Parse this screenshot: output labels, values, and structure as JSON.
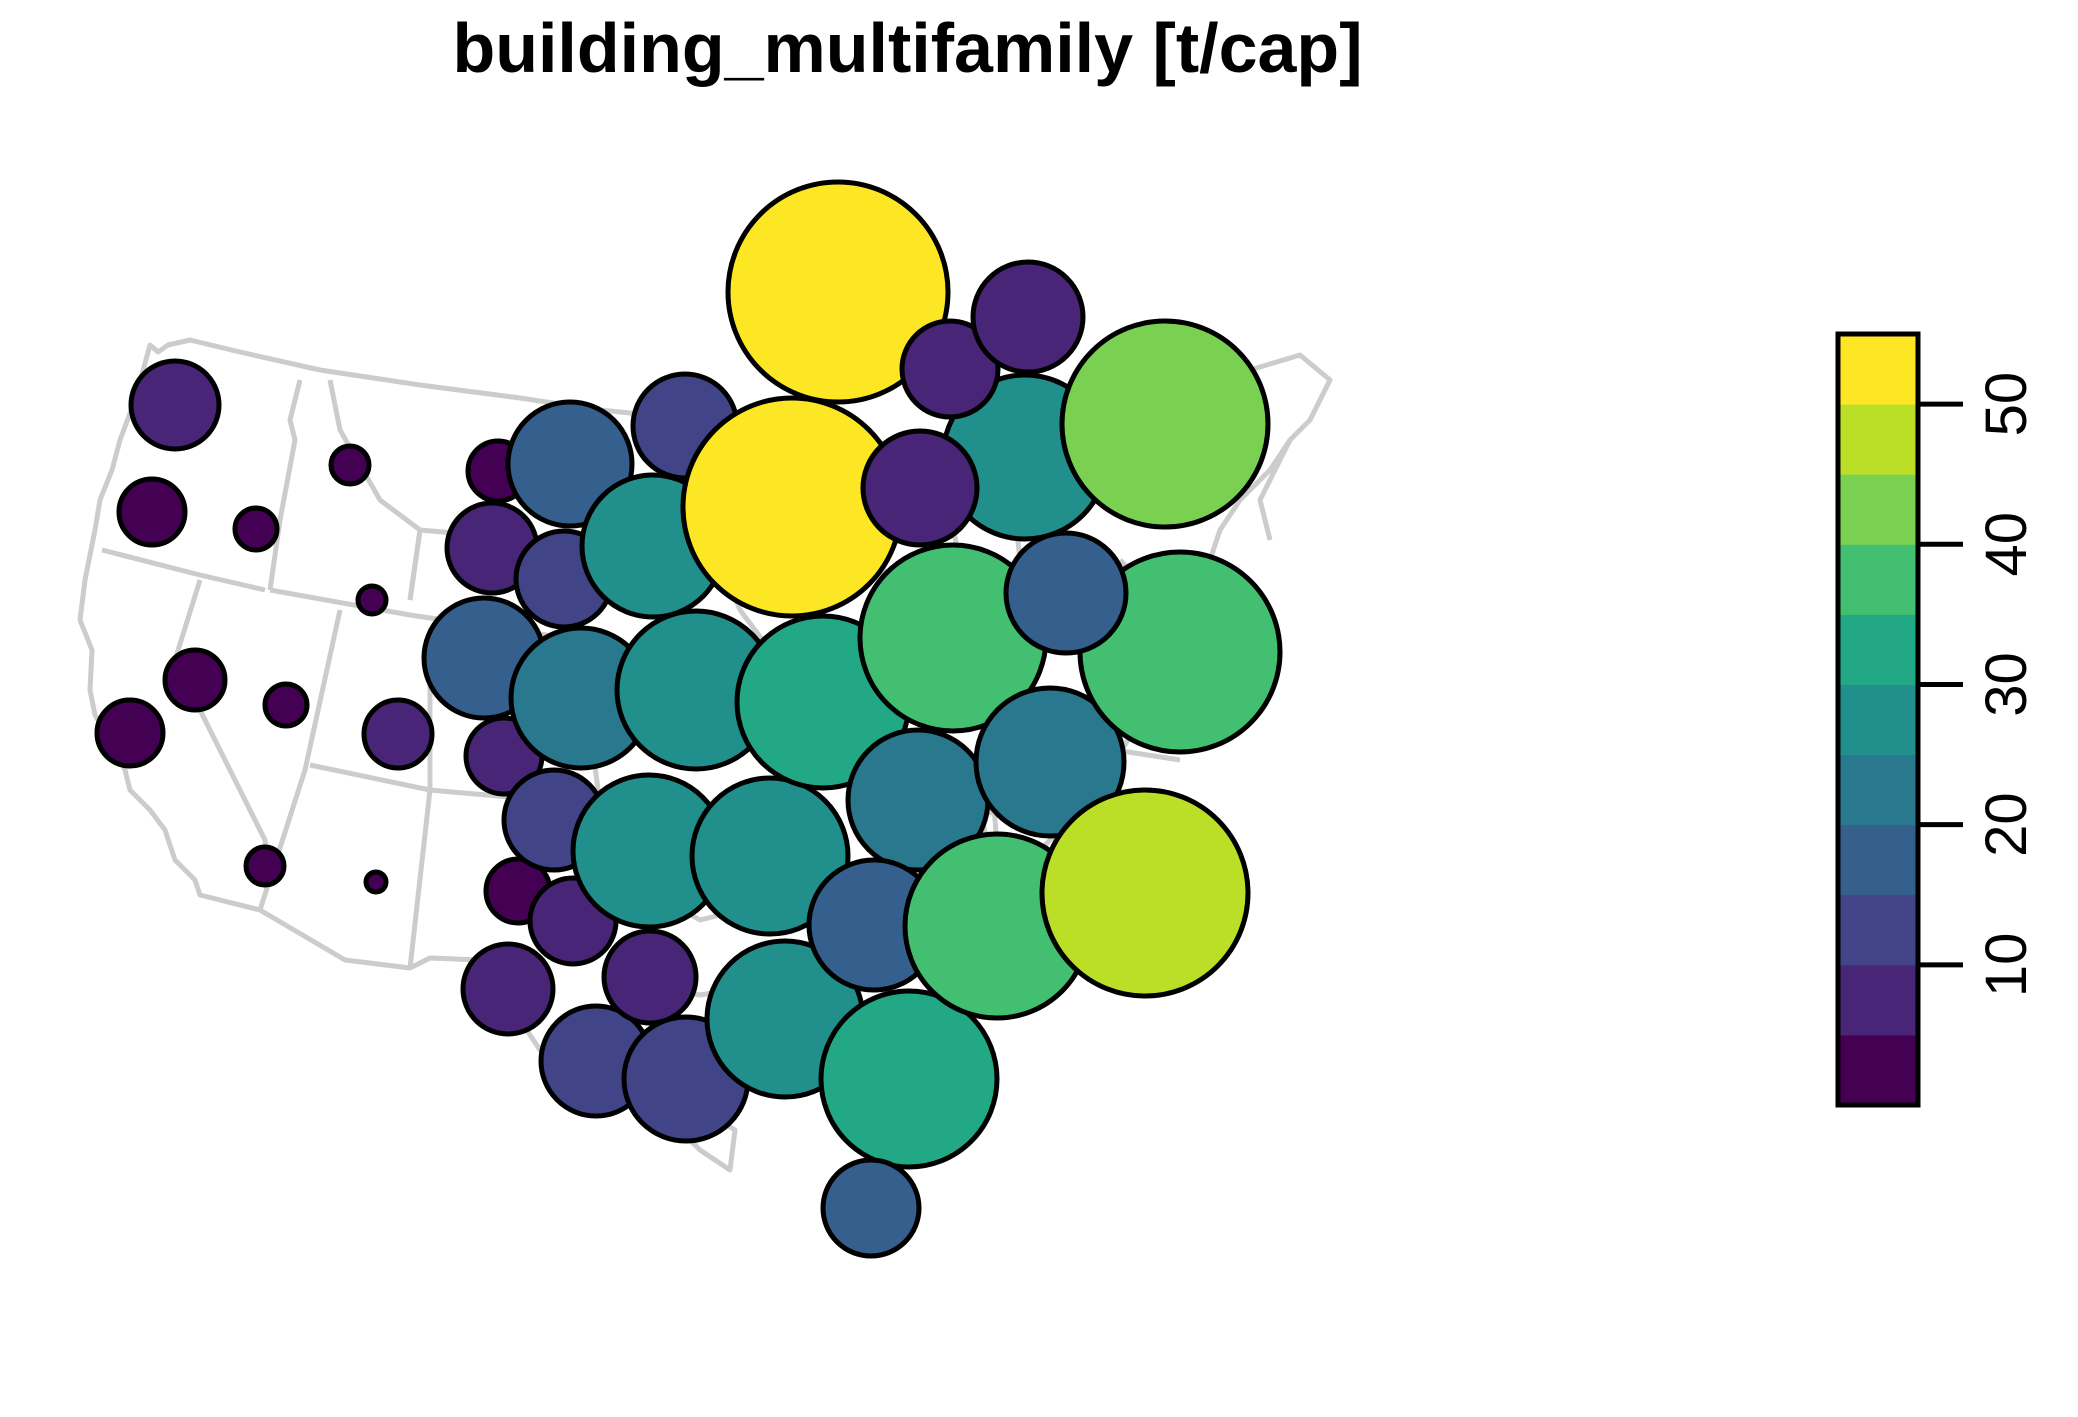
{
  "title": "building_multifamily [t/cap]",
  "legend": {
    "type": "continuous-colorbar",
    "range": [
      0,
      55
    ],
    "breaks": [
      0,
      5,
      10,
      15,
      20,
      25,
      30,
      35,
      40,
      45,
      50,
      55
    ],
    "colors": [
      "#440154",
      "#482576",
      "#414487",
      "#35608D",
      "#2A788E",
      "#21908C",
      "#22A884",
      "#43BF71",
      "#7AD151",
      "#BBDF27",
      "#FDE725"
    ],
    "ticks": [
      "10",
      "20",
      "30",
      "40",
      "50"
    ],
    "tick_values": [
      10,
      20,
      30,
      40,
      50
    ]
  },
  "map": {
    "basemap": "Contiguous United States state outlines (light grey)",
    "symbol": "proportional circles colored by value"
  },
  "chart_data": {
    "type": "proportional-symbol-map",
    "title": "building_multifamily [t/cap]",
    "value_range": [
      0,
      55
    ],
    "note": "one circle per state; radius and fill both encode the value",
    "points": [
      {
        "state": "WA",
        "value": 7
      },
      {
        "state": "OR",
        "value": 3
      },
      {
        "state": "CA",
        "value": 3
      },
      {
        "state": "NV",
        "value": 2
      },
      {
        "state": "ID",
        "value": 1.5
      },
      {
        "state": "MT",
        "value": 1
      },
      {
        "state": "WY",
        "value": 0.5
      },
      {
        "state": "UT",
        "value": 1.5
      },
      {
        "state": "AZ",
        "value": 1
      },
      {
        "state": "CO",
        "value": 7
      },
      {
        "state": "NM",
        "value": 0.3
      },
      {
        "state": "ND",
        "value": 3
      },
      {
        "state": "SD",
        "value": 7
      },
      {
        "state": "NE",
        "value": 19
      },
      {
        "state": "KS",
        "value": 6
      },
      {
        "state": "OK",
        "value": 4
      },
      {
        "state": "TX",
        "value": 8
      },
      {
        "state": "MN",
        "value": 20
      },
      {
        "state": "IA",
        "value": 12
      },
      {
        "state": "MO",
        "value": 25
      },
      {
        "state": "AR",
        "value": 11
      },
      {
        "state": "LA",
        "value": 11
      },
      {
        "state": "WI",
        "value": 12
      },
      {
        "state": "IL",
        "value": 26
      },
      {
        "state": "MS",
        "value": 7
      },
      {
        "state": "MI",
        "value": 53
      },
      {
        "state": "IN",
        "value": 29
      },
      {
        "state": "TN",
        "value": 27
      },
      {
        "state": "AL",
        "value": 15
      },
      {
        "state": "OH",
        "value": 34
      },
      {
        "state": "KY",
        "value": 27
      },
      {
        "state": "GA",
        "value": 28
      },
      {
        "state": "FL",
        "value": 34
      },
      {
        "state": "PA",
        "value": 38
      },
      {
        "state": "WV",
        "value": 22
      },
      {
        "state": "VA",
        "value": 17
      },
      {
        "state": "NC",
        "value": 38
      },
      {
        "state": "SC",
        "value": 16
      },
      {
        "state": "NY",
        "value": 30
      },
      {
        "state": "NJ",
        "value": 22
      },
      {
        "state": "MD",
        "value": 47
      },
      {
        "state": "DE",
        "value": 40
      },
      {
        "state": "CT",
        "value": 16
      },
      {
        "state": "MA",
        "value": 45
      },
      {
        "state": "VT",
        "value": 9
      },
      {
        "state": "NH",
        "value": 9
      },
      {
        "state": "ME",
        "value": 9
      },
      {
        "state": "RI",
        "value": 52
      },
      {
        "state": "DC",
        "value": 10
      }
    ]
  }
}
